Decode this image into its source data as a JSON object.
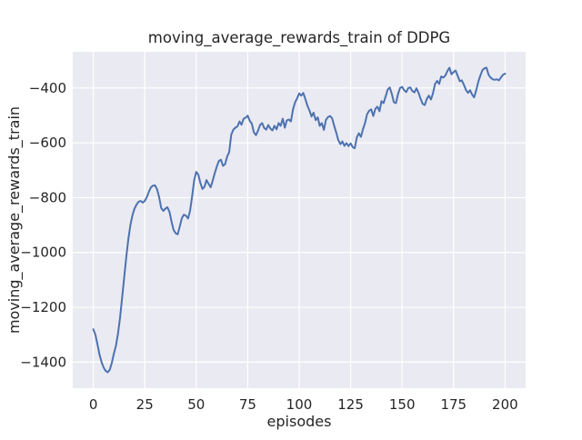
{
  "chart_data": {
    "type": "line",
    "title": "moving_average_rewards_train of DDPG",
    "xlabel": "episodes",
    "ylabel": "moving_average_rewards_train",
    "x_ticks": [
      0,
      25,
      50,
      75,
      100,
      125,
      150,
      175,
      200
    ],
    "y_ticks": [
      -400,
      -600,
      -800,
      -1000,
      -1200,
      -1400
    ],
    "xlim": [
      -10,
      210
    ],
    "ylim": [
      -1495,
      -268
    ],
    "grid": true,
    "legend": "none",
    "style": {
      "line_color": "#4c72b0",
      "axes_background": "#eaeaf2",
      "grid_color": "#ffffff",
      "figure_background": "#ffffff",
      "text_color": "#262626"
    },
    "series": [
      {
        "name": "moving_average_rewards_train",
        "x_start": 0,
        "x_step": 1,
        "values": [
          -1280,
          -1300,
          -1335,
          -1372,
          -1400,
          -1420,
          -1432,
          -1437,
          -1428,
          -1402,
          -1368,
          -1340,
          -1295,
          -1235,
          -1165,
          -1090,
          -1015,
          -952,
          -900,
          -865,
          -840,
          -825,
          -815,
          -812,
          -818,
          -812,
          -798,
          -778,
          -762,
          -756,
          -755,
          -770,
          -800,
          -838,
          -848,
          -840,
          -835,
          -852,
          -888,
          -918,
          -930,
          -934,
          -905,
          -875,
          -862,
          -866,
          -876,
          -848,
          -795,
          -735,
          -706,
          -716,
          -746,
          -768,
          -760,
          -736,
          -750,
          -762,
          -738,
          -710,
          -686,
          -666,
          -662,
          -684,
          -678,
          -650,
          -634,
          -570,
          -552,
          -545,
          -540,
          -522,
          -534,
          -512,
          -508,
          -501,
          -520,
          -530,
          -562,
          -572,
          -556,
          -535,
          -528,
          -546,
          -552,
          -535,
          -548,
          -555,
          -538,
          -551,
          -528,
          -538,
          -512,
          -545,
          -518,
          -515,
          -522,
          -478,
          -452,
          -438,
          -420,
          -428,
          -418,
          -440,
          -465,
          -482,
          -504,
          -490,
          -517,
          -507,
          -538,
          -528,
          -553,
          -516,
          -506,
          -502,
          -510,
          -538,
          -562,
          -590,
          -605,
          -595,
          -611,
          -601,
          -612,
          -602,
          -616,
          -620,
          -580,
          -565,
          -578,
          -550,
          -528,
          -495,
          -483,
          -478,
          -502,
          -476,
          -468,
          -485,
          -448,
          -455,
          -430,
          -406,
          -398,
          -422,
          -452,
          -455,
          -422,
          -400,
          -396,
          -408,
          -415,
          -400,
          -398,
          -411,
          -416,
          -401,
          -418,
          -440,
          -458,
          -462,
          -440,
          -428,
          -442,
          -420,
          -385,
          -374,
          -385,
          -358,
          -362,
          -355,
          -338,
          -326,
          -350,
          -342,
          -336,
          -356,
          -375,
          -372,
          -388,
          -407,
          -418,
          -408,
          -424,
          -434,
          -408,
          -378,
          -355,
          -335,
          -328,
          -326,
          -352,
          -362,
          -368,
          -370,
          -368,
          -372,
          -362,
          -352,
          -348
        ]
      }
    ]
  }
}
